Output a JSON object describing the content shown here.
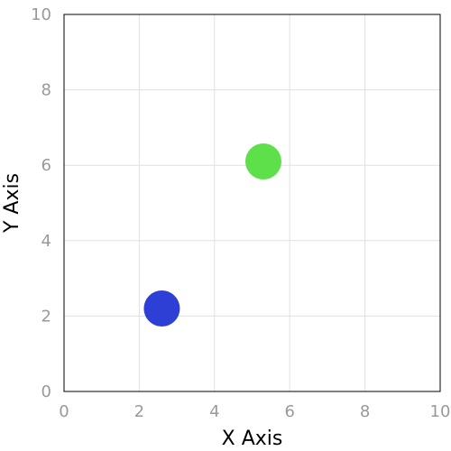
{
  "chart_data": {
    "type": "scatter",
    "title": "",
    "xlabel": "X Axis",
    "ylabel": "Y Axis",
    "xlim": [
      0,
      10
    ],
    "ylim": [
      0,
      10
    ],
    "xticks": [
      0,
      2,
      4,
      6,
      8,
      10
    ],
    "yticks": [
      0,
      2,
      4,
      6,
      8,
      10
    ],
    "grid": true,
    "points": [
      {
        "x": 2.6,
        "y": 2.2,
        "color": "#2e3fd6"
      },
      {
        "x": 5.3,
        "y": 6.1,
        "color": "#5ee04a"
      }
    ]
  }
}
